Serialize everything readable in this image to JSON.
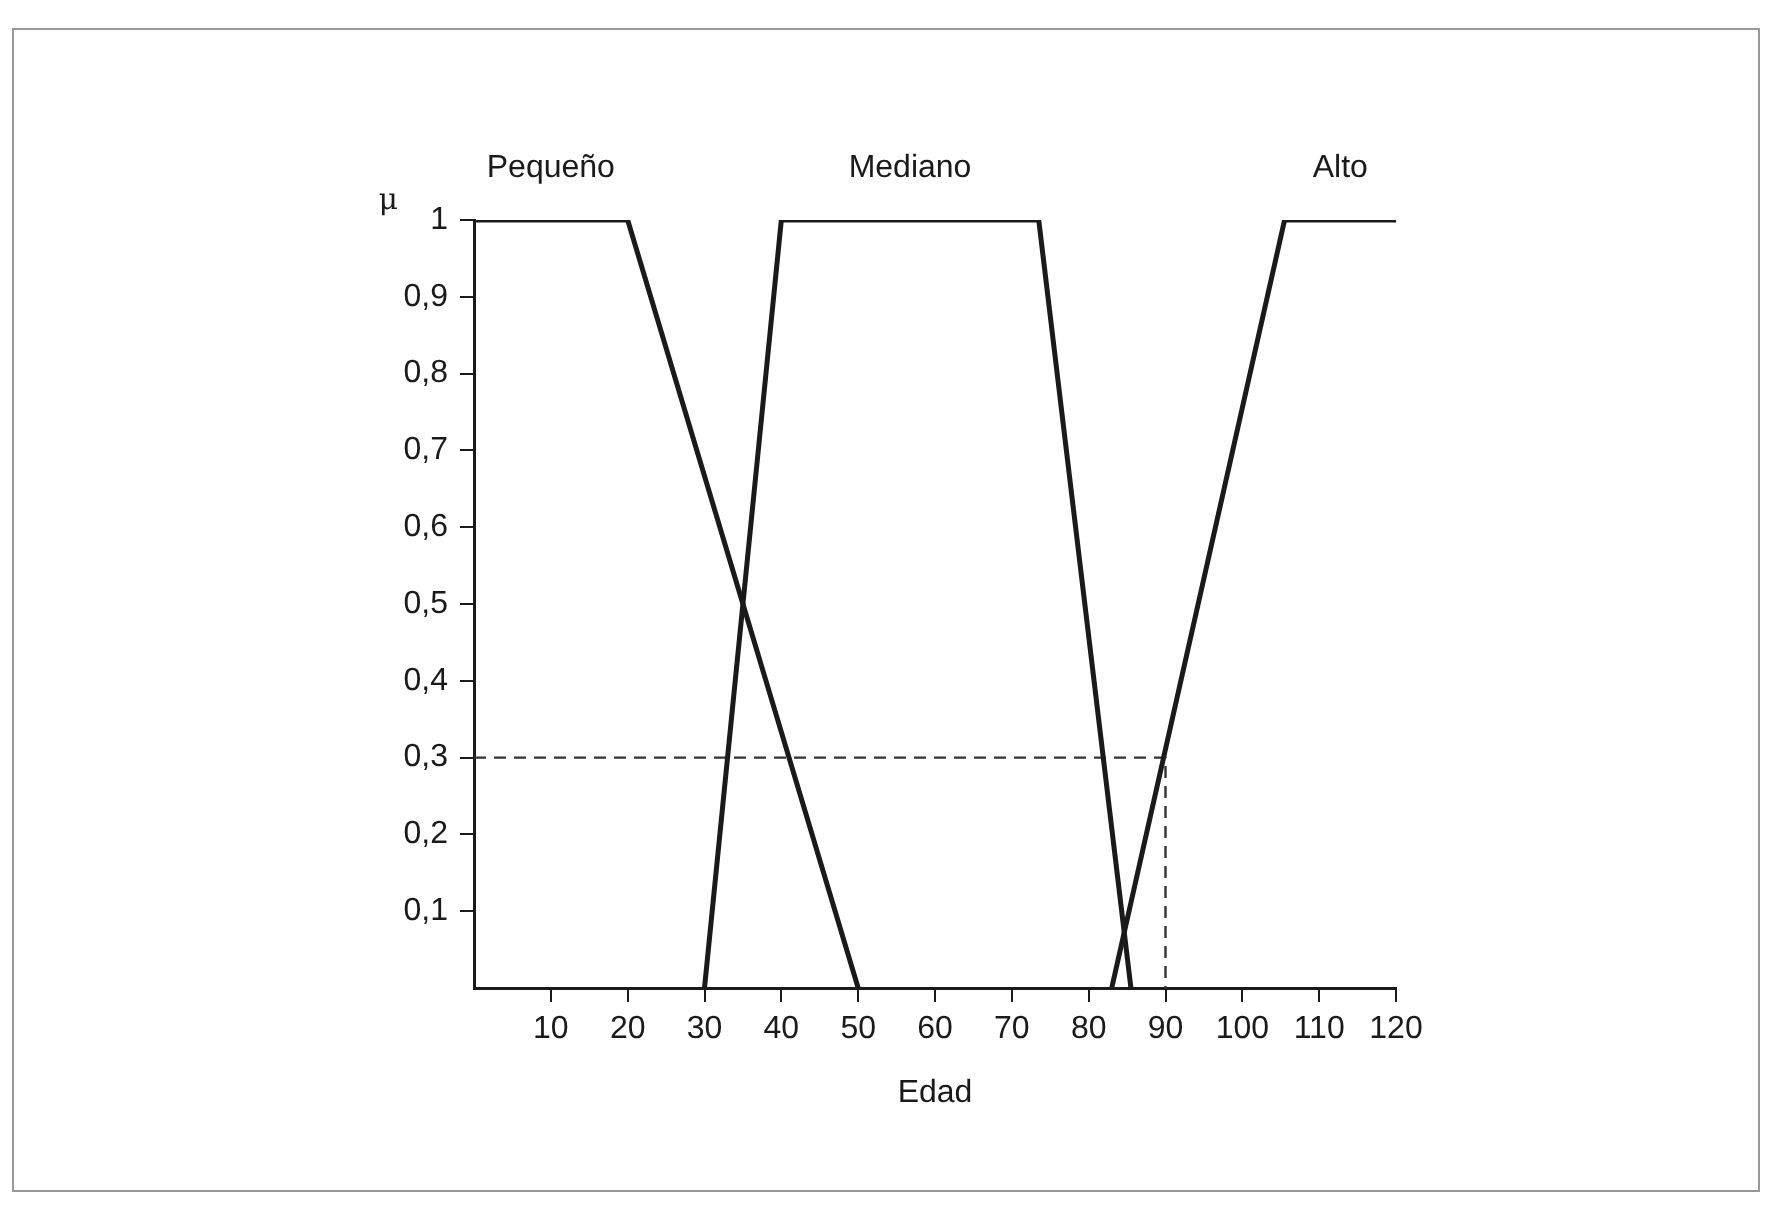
{
  "chart_data": {
    "type": "line",
    "xlabel": "Edad",
    "ylabel": "μ",
    "xlim": [
      0,
      120
    ],
    "xticks": [
      10,
      20,
      30,
      40,
      50,
      60,
      70,
      80,
      90,
      100,
      110,
      120
    ],
    "ylim": [
      0,
      1
    ],
    "yticks": [
      {
        "value": 0.1,
        "label": "0,1"
      },
      {
        "value": 0.2,
        "label": "0,2"
      },
      {
        "value": 0.3,
        "label": "0,3"
      },
      {
        "value": 0.4,
        "label": "0,4"
      },
      {
        "value": 0.5,
        "label": "0,5"
      },
      {
        "value": 0.6,
        "label": "0,6"
      },
      {
        "value": 0.7,
        "label": "0,7"
      },
      {
        "value": 0.8,
        "label": "0,8"
      },
      {
        "value": 0.9,
        "label": "0,9"
      },
      1
    ],
    "grid": false,
    "legend": false,
    "marker": "none",
    "series": [
      {
        "name": "Pequeño",
        "color": "#1a1a1a",
        "x": [
          0,
          20,
          50
        ],
        "values": [
          1,
          1,
          0
        ]
      },
      {
        "name": "Mediano",
        "color": "#1a1a1a",
        "x": [
          30,
          40,
          73.5,
          85.5
        ],
        "values": [
          0,
          1,
          1,
          0
        ]
      },
      {
        "name": "Alto",
        "color": "#1a1a1a",
        "x": [
          83,
          105.5,
          120
        ],
        "values": [
          0,
          1,
          1
        ]
      },
      {
        "color": "#333333",
        "line_style": "dashed",
        "x": [
          0,
          90,
          90
        ],
        "values": [
          0.3,
          0.3,
          0
        ]
      }
    ]
  }
}
